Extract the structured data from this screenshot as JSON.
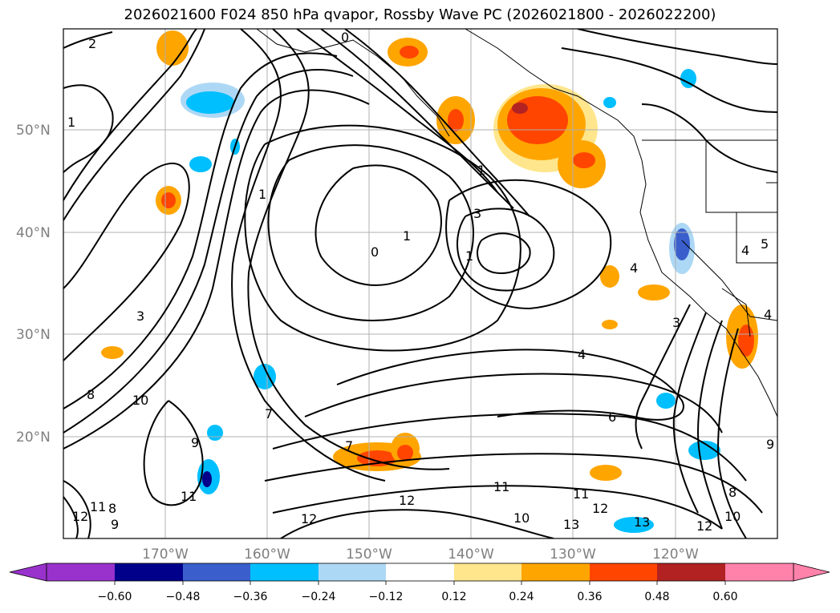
{
  "title": "2026021600 F024 850 hPa qvapor, Rossby Wave PC (2026021800 - 2026022200)",
  "latitudes": [
    "50°N",
    "40°N",
    "30°N",
    "20°N"
  ],
  "longitudes": [
    "170°W",
    "160°W",
    "150°W",
    "140°W",
    "130°W",
    "120°W"
  ],
  "colorbar": {
    "colors": [
      "#9932cc",
      "#00008b",
      "#3a5fcd",
      "#00bfff",
      "#add8f5",
      "#ffffff",
      "#ffe68c",
      "#ffa500",
      "#ff4500",
      "#b22222",
      "#ff82ab"
    ],
    "ticks": [
      "−0.60",
      "−0.48",
      "−0.36",
      "−0.24",
      "−0.12",
      "0.12",
      "0.24",
      "0.36",
      "0.48",
      "0.60"
    ]
  },
  "contour_labels": [
    "2",
    "1",
    "0",
    "3",
    "1",
    "0",
    "1",
    "1",
    "3",
    "1",
    "4",
    "4",
    "5",
    "4",
    "3",
    "8",
    "10",
    "9",
    "7",
    "7",
    "6",
    "4",
    "11",
    "12",
    "12",
    "11",
    "12",
    "11",
    "10",
    "13",
    "13",
    "12",
    "10",
    "9",
    "8",
    "11",
    "12",
    "8",
    "9"
  ],
  "colors": {
    "shading_positive": "#ffa500",
    "shading_negative": "#00bfff"
  }
}
